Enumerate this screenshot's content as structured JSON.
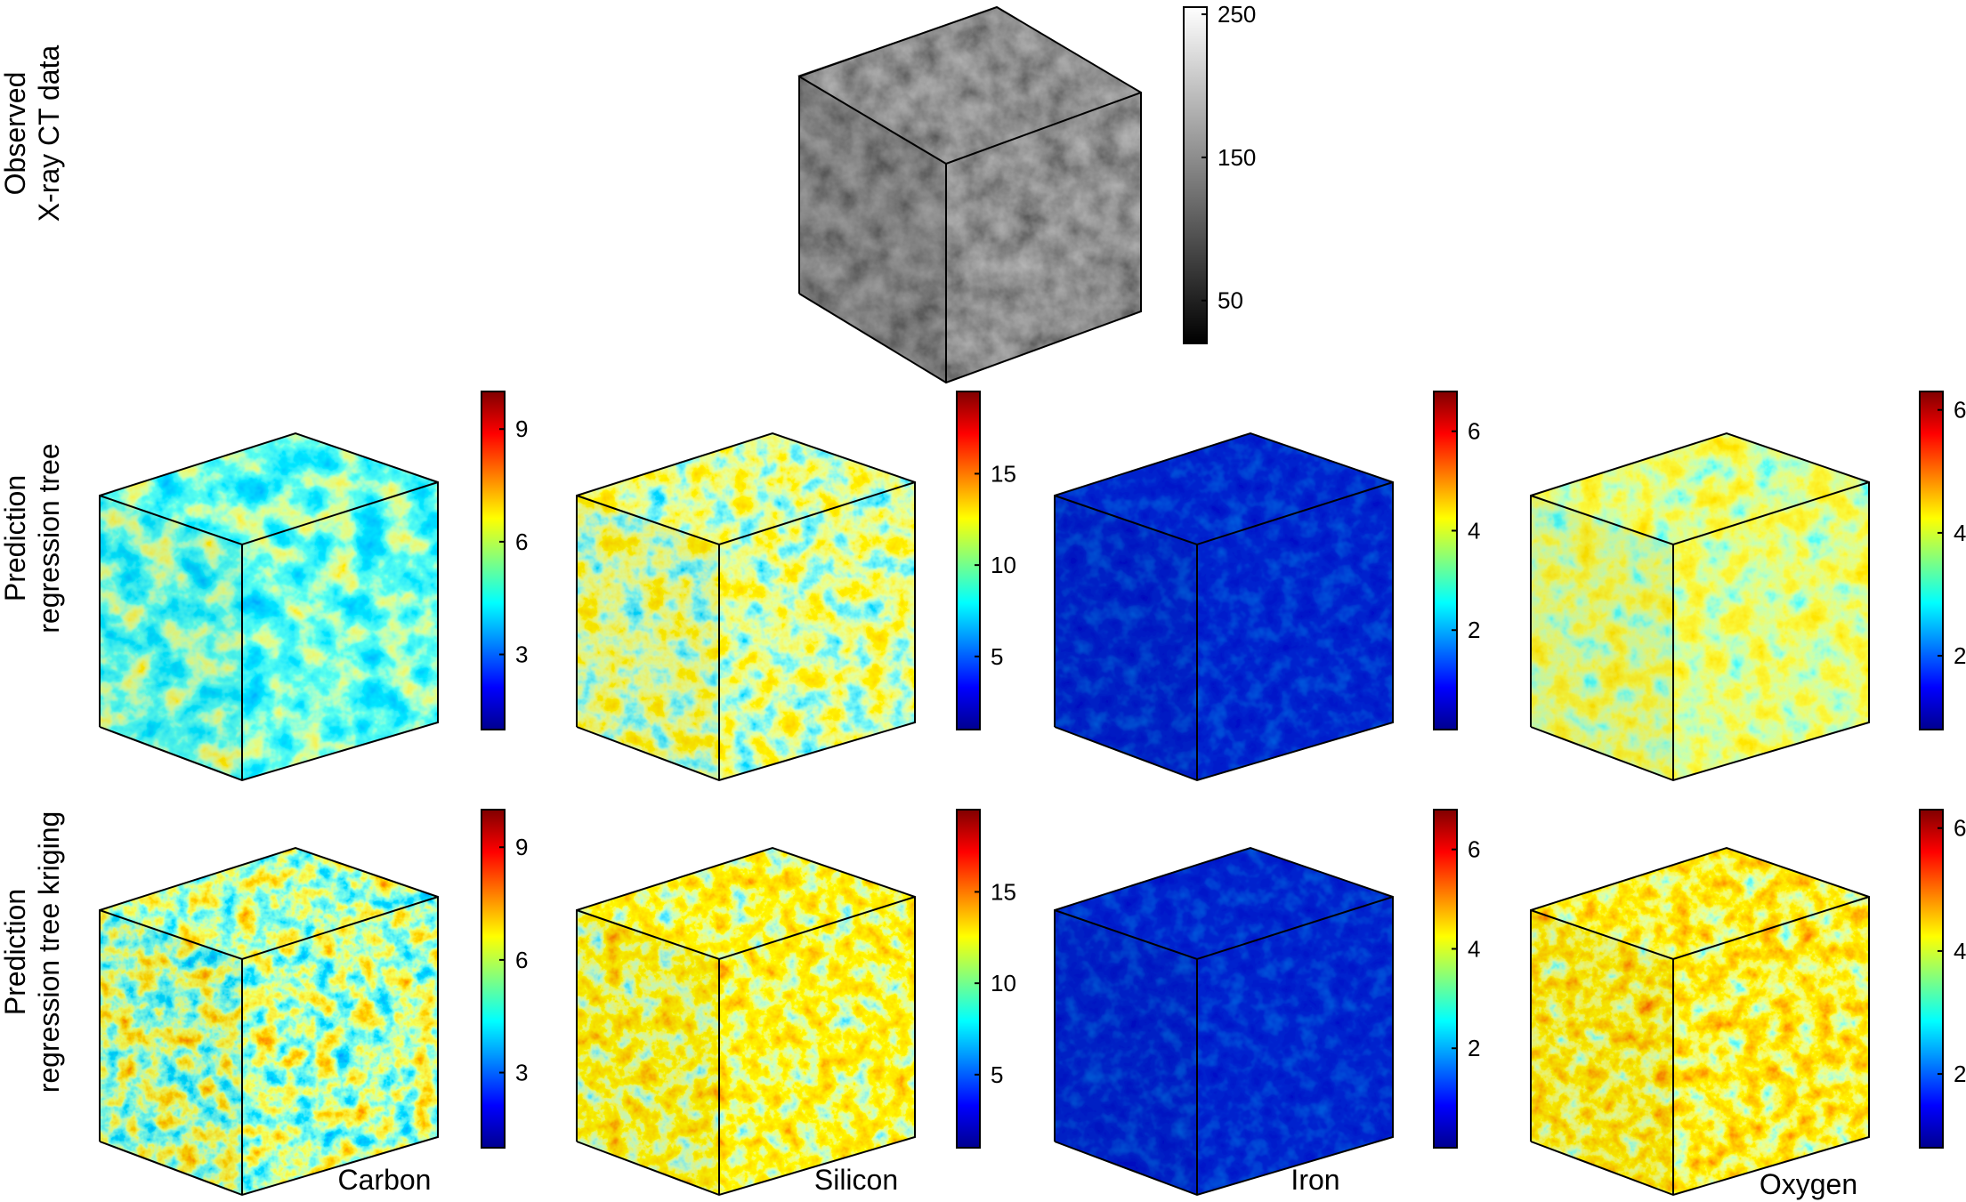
{
  "row_labels": [
    {
      "line1": "Observed",
      "line2": "X-ray CT data"
    },
    {
      "line1": "Prediction",
      "line2": "regression tree"
    },
    {
      "line1": "Prediction",
      "line2": "regression tree kriging"
    }
  ],
  "column_labels": [
    "Carbon",
    "Silicon",
    "Iron",
    "Oxygen"
  ],
  "colors": {
    "jet": [
      "#00008f",
      "#0000ff",
      "#0080ff",
      "#00ffff",
      "#80ff80",
      "#ffff00",
      "#ff8000",
      "#ff0000",
      "#800000"
    ],
    "gray": [
      "#000000",
      "#ffffff"
    ]
  },
  "observed": {
    "colorbar_ticks": [
      "250",
      "150",
      "50"
    ],
    "colorbar_range": [
      20,
      255
    ]
  },
  "elements": [
    {
      "name": "Carbon",
      "ticks": [
        "9",
        "6",
        "3"
      ],
      "range": [
        1,
        10
      ]
    },
    {
      "name": "Silicon",
      "ticks": [
        "15",
        "10",
        "5"
      ],
      "range": [
        1,
        19.5
      ]
    },
    {
      "name": "Iron",
      "ticks": [
        "6",
        "4",
        "2"
      ],
      "range": [
        0,
        6.8
      ]
    },
    {
      "name": "Oxygen",
      "ticks": [
        "6",
        "4",
        "2"
      ],
      "range": [
        0.8,
        6.3
      ]
    }
  ]
}
